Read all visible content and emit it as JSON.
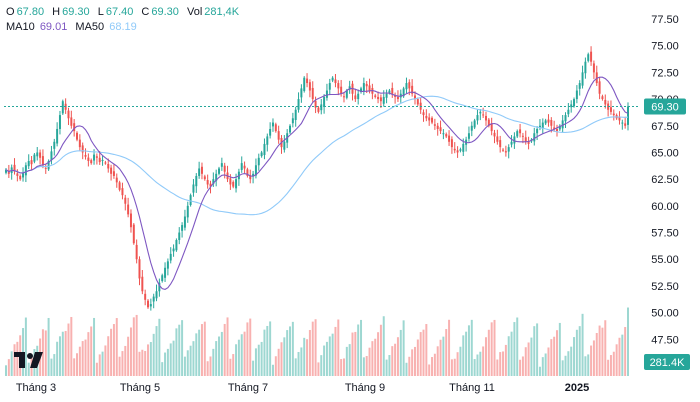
{
  "ohlc_legend": {
    "o_label": "O",
    "o_value": "67.80",
    "h_label": "H",
    "h_value": "69.30",
    "l_label": "L",
    "l_value": "67.40",
    "c_label": "C",
    "c_value": "69.30",
    "vol_label": "Vol",
    "vol_value": "281,4K"
  },
  "ma_legend": {
    "ma10_label": "MA10",
    "ma10_value": "69.01",
    "ma50_label": "MA50",
    "ma50_value": "68.19"
  },
  "last_price_label": "69.30",
  "last_volume_label": "281.4K",
  "colors": {
    "up": "#26a69a",
    "down": "#ef5350",
    "ma10": "#7e57c2",
    "ma50": "#90caf9",
    "price_tag": "#26a69a",
    "axis_text": "#131722"
  },
  "chart_data": {
    "type": "candlestick",
    "y_ticks": [
      "77.50",
      "75.00",
      "72.50",
      "70.00",
      "67.50",
      "65.00",
      "62.50",
      "60.00",
      "57.50",
      "55.00",
      "52.50",
      "50.00",
      "47.50",
      "45.00"
    ],
    "ylim": [
      45.0,
      77.5
    ],
    "x_ticks": [
      "Tháng 3",
      "Tháng 5",
      "Tháng 7",
      "Tháng 9",
      "Tháng 11",
      "2025"
    ],
    "bold_x_ticks": [
      "2025"
    ],
    "close": [
      63.4,
      63.0,
      63.6,
      63.2,
      62.8,
      62.5,
      63.1,
      63.8,
      64.2,
      63.9,
      64.8,
      65.0,
      64.5,
      63.8,
      63.5,
      64.2,
      65.1,
      66.0,
      67.2,
      68.5,
      69.8,
      69.0,
      68.2,
      67.5,
      67.0,
      66.2,
      65.5,
      65.0,
      64.6,
      64.2,
      64.0,
      64.8,
      64.5,
      64.1,
      64.3,
      64.0,
      63.5,
      63.0,
      62.8,
      62.2,
      61.5,
      61.0,
      60.2,
      59.2,
      58.0,
      56.5,
      55.0,
      53.2,
      52.0,
      51.2,
      50.5,
      50.8,
      51.5,
      52.0,
      52.8,
      53.5,
      54.2,
      54.8,
      55.5,
      56.0,
      56.8,
      57.5,
      58.2,
      59.0,
      60.0,
      61.0,
      62.0,
      62.8,
      63.5,
      63.0,
      62.5,
      62.0,
      61.8,
      62.5,
      63.0,
      63.5,
      64.0,
      63.2,
      62.5,
      62.0,
      61.8,
      62.5,
      63.2,
      64.0,
      63.5,
      62.8,
      62.5,
      63.0,
      63.8,
      64.5,
      65.0,
      65.8,
      66.5,
      67.2,
      67.8,
      67.0,
      66.2,
      65.5,
      66.0,
      66.8,
      67.5,
      68.2,
      69.0,
      70.0,
      71.0,
      72.0,
      71.5,
      70.8,
      70.0,
      69.2,
      68.8,
      69.5,
      70.2,
      70.8,
      71.5,
      72.0,
      71.5,
      71.0,
      70.5,
      70.2,
      70.8,
      71.2,
      70.5,
      70.0,
      70.5,
      71.0,
      71.5,
      71.2,
      70.8,
      70.5,
      70.2,
      70.0,
      69.8,
      70.2,
      70.5,
      70.8,
      70.5,
      70.2,
      70.0,
      70.5,
      71.0,
      71.5,
      71.0,
      70.5,
      70.0,
      69.5,
      69.0,
      68.5,
      68.2,
      68.0,
      67.8,
      67.5,
      67.2,
      67.0,
      66.8,
      66.5,
      66.0,
      65.5,
      65.2,
      65.0,
      65.3,
      65.8,
      66.2,
      66.8,
      67.5,
      68.0,
      68.5,
      68.8,
      68.5,
      68.0,
      67.5,
      67.0,
      66.5,
      66.0,
      65.5,
      65.2,
      65.0,
      65.5,
      66.0,
      66.5,
      67.0,
      66.8,
      66.5,
      66.0,
      65.8,
      66.2,
      66.8,
      67.2,
      67.5,
      67.8,
      68.0,
      67.8,
      67.5,
      67.2,
      67.0,
      67.5,
      68.0,
      68.5,
      69.0,
      69.5,
      70.0,
      70.8,
      71.5,
      72.5,
      73.5,
      74.2,
      73.5,
      72.5,
      71.5,
      70.5,
      70.0,
      69.5,
      69.0,
      68.8,
      68.5,
      68.2,
      68.0,
      67.8,
      67.5,
      69.3
    ],
    "ma10_label": "MA10",
    "ma50_label": "MA50",
    "last_close": 69.3,
    "volume_axis_label": "281.4K"
  }
}
